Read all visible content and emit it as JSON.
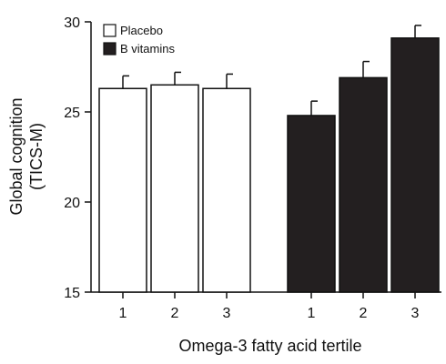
{
  "chart_data": {
    "type": "bar",
    "xlabel": "Omega-3 fatty acid tertile",
    "ylabel_lines": [
      "Global cognition",
      "(TICS-M)"
    ],
    "ylim": [
      15,
      30
    ],
    "yticks": [
      "15",
      "20",
      "25",
      "30"
    ],
    "categories": [
      "1",
      "2",
      "3"
    ],
    "grid": false,
    "legend_position": "top-left",
    "series": [
      {
        "name": "Placebo",
        "fill": "#ffffff",
        "values": [
          26.3,
          26.5,
          26.3
        ],
        "errors": [
          0.7,
          0.7,
          0.8
        ]
      },
      {
        "name": "B vitamins",
        "fill": "#231f20",
        "values": [
          24.8,
          26.9,
          29.1
        ],
        "errors": [
          0.8,
          0.9,
          0.7
        ]
      }
    ]
  }
}
